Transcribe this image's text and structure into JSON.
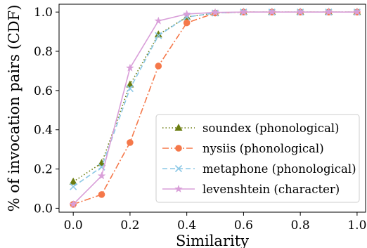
{
  "chart_data": {
    "type": "line",
    "xlabel": "Similarity",
    "ylabel": "% of invocation pairs (CDF)",
    "xlim": [
      -0.05,
      1.03
    ],
    "ylim": [
      -0.02,
      1.04
    ],
    "x_ticks": [
      0.0,
      0.2,
      0.4,
      0.6,
      0.8,
      1.0
    ],
    "x_tick_labels": [
      "0.0",
      "0.2",
      "0.4",
      "0.6",
      "0.8",
      "1.0"
    ],
    "y_ticks": [
      0.0,
      0.2,
      0.4,
      0.6,
      0.8,
      1.0
    ],
    "y_tick_labels": [
      "0.0",
      "0.2",
      "0.4",
      "0.6",
      "0.8",
      "1.0"
    ],
    "grid": false,
    "legend_position": "lower-right",
    "x": [
      0.0,
      0.1,
      0.2,
      0.3,
      0.4,
      0.5,
      0.6,
      0.7,
      0.8,
      0.9,
      1.0
    ],
    "series": [
      {
        "name": "soundex (phonological)",
        "color": "#6b7d11",
        "line_style": "dotted",
        "marker": "triangle",
        "values": [
          0.135,
          0.23,
          0.63,
          0.885,
          0.975,
          0.995,
          1.0,
          1.0,
          1.0,
          1.0,
          1.0
        ]
      },
      {
        "name": "nysiis (phonological)",
        "color": "#f5784a",
        "line_style": "dashdot",
        "marker": "circle",
        "values": [
          0.02,
          0.07,
          0.335,
          0.725,
          0.945,
          0.995,
          1.0,
          1.0,
          1.0,
          1.0,
          1.0
        ]
      },
      {
        "name": "metaphone (phonological)",
        "color": "#8cc8e6",
        "line_style": "dashed",
        "marker": "x",
        "values": [
          0.11,
          0.21,
          0.61,
          0.88,
          0.975,
          0.995,
          1.0,
          1.0,
          1.0,
          1.0,
          1.0
        ]
      },
      {
        "name": "levenshtein (character)",
        "color": "#d99fd9",
        "line_style": "solid",
        "marker": "star",
        "values": [
          0.02,
          0.165,
          0.715,
          0.955,
          0.99,
          0.998,
          1.0,
          1.0,
          1.0,
          1.0,
          1.0
        ]
      }
    ]
  }
}
